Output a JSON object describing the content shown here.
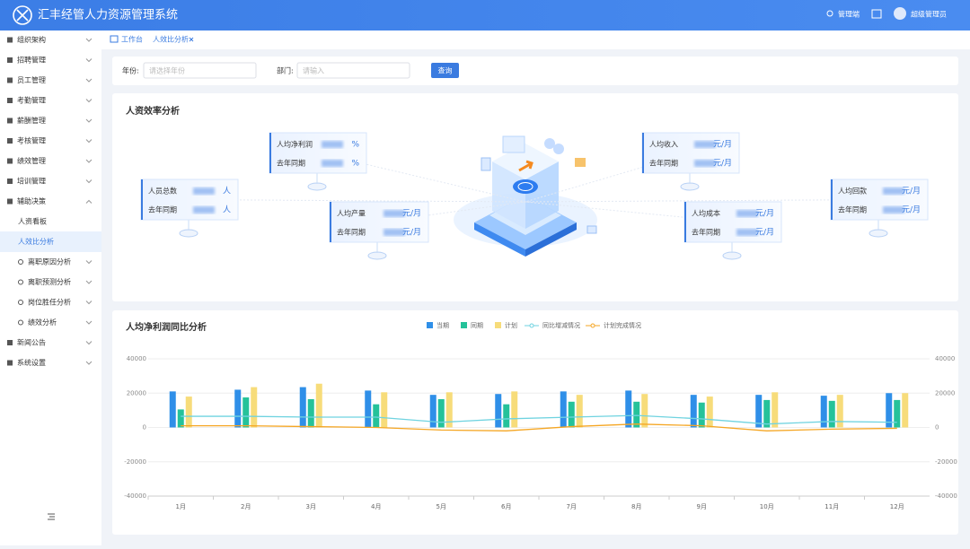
{
  "header": {
    "title": "汇丰经管人力资源管理系统",
    "role": "管理端",
    "user": "超级管理员"
  },
  "breadcrumb": {
    "home": "工作台",
    "tab": "人效比分析"
  },
  "sidebar": {
    "items": [
      {
        "label": "组织架构"
      },
      {
        "label": "招聘管理"
      },
      {
        "label": "员工管理"
      },
      {
        "label": "考勤管理"
      },
      {
        "label": "薪酬管理"
      },
      {
        "label": "考核管理"
      },
      {
        "label": "绩效管理"
      },
      {
        "label": "培训管理"
      },
      {
        "label": "辅助决策",
        "children": [
          {
            "label": "人资看板"
          },
          {
            "label": "人效比分析"
          },
          {
            "label": "离职原因分析"
          },
          {
            "label": "离职预测分析"
          },
          {
            "label": "岗位胜任分析"
          },
          {
            "label": "绩效分析"
          }
        ]
      },
      {
        "label": "新闻公告"
      },
      {
        "label": "系统设置"
      }
    ]
  },
  "filter": {
    "year_label": "年份:",
    "year_placeholder": "请选择年份",
    "dept_label": "部门:",
    "dept_placeholder": "请输入",
    "button": "查询"
  },
  "efficiency": {
    "title": "人资效率分析",
    "cards": [
      {
        "label": "人均净利润",
        "compare_label": "去年同期",
        "unit": "%"
      },
      {
        "label": "人员总数",
        "compare_label": "去年同期",
        "unit": "人"
      },
      {
        "label": "人均产量",
        "compare_label": "去年同期",
        "unit": "元/月"
      },
      {
        "label": "人均收入",
        "compare_label": "去年同期",
        "unit": "元/月"
      },
      {
        "label": "人均成本",
        "compare_label": "去年同期",
        "unit": "元/月"
      },
      {
        "label": "人均回款",
        "compare_label": "去年同期",
        "unit": "元/月"
      }
    ]
  },
  "chart_data": {
    "type": "bar",
    "title": "人均净利润同比分析",
    "categories": [
      "1月",
      "2月",
      "3月",
      "4月",
      "5月",
      "6月",
      "7月",
      "8月",
      "9月",
      "10月",
      "11月",
      "12月"
    ],
    "series": [
      {
        "name": "当期",
        "type": "bar",
        "color": "#2f8fe8",
        "values": [
          21000,
          22000,
          23500,
          21500,
          19000,
          19500,
          21000,
          21500,
          19000,
          19000,
          18500,
          20000
        ]
      },
      {
        "name": "同期",
        "type": "bar",
        "color": "#25c29a",
        "values": [
          10500,
          17500,
          16500,
          13500,
          16500,
          13500,
          15000,
          15000,
          14500,
          16000,
          15500,
          16000
        ]
      },
      {
        "name": "计划",
        "type": "bar",
        "color": "#f7dc7a",
        "values": [
          18000,
          23500,
          25500,
          20500,
          20500,
          21000,
          19000,
          19500,
          18000,
          20500,
          19000,
          20000
        ]
      },
      {
        "name": "同比增减情况",
        "type": "line",
        "axis": "y2",
        "color": "#6fd3e0",
        "values": [
          6500,
          6500,
          6000,
          6000,
          3000,
          5000,
          6000,
          7000,
          5000,
          2000,
          3500,
          3000
        ]
      },
      {
        "name": "计划完成情况",
        "type": "line",
        "axis": "y2",
        "color": "#f5a623",
        "values": [
          1000,
          1000,
          500,
          0,
          -1500,
          -2000,
          500,
          2000,
          1000,
          -2000,
          -1000,
          -500
        ]
      }
    ],
    "ylim": [
      -40000,
      40000
    ],
    "yticks": [
      -40000,
      -20000,
      0,
      20000,
      40000
    ],
    "y2lim": [
      -40000,
      40000
    ],
    "y2ticks": [
      -40000,
      -20000,
      0,
      20000,
      40000
    ],
    "grid": true
  }
}
